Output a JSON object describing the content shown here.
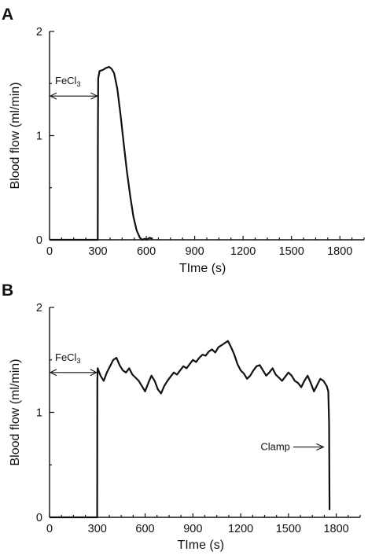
{
  "chart_data": [
    {
      "type": "line",
      "panel": "A",
      "xlabel": "TIme (s)",
      "ylabel": "Blood flow (ml/min)",
      "xlim": [
        0,
        1950
      ],
      "ylim": [
        0,
        2
      ],
      "xticks": [
        0,
        300,
        600,
        900,
        1200,
        1500,
        1800
      ],
      "yticks": [
        0,
        1,
        2
      ],
      "annotations": [
        {
          "label": "FeCl",
          "subscript": "3",
          "kind": "double-arrow",
          "x_from": 0,
          "x_to": 300,
          "y": 1.38
        }
      ],
      "series": [
        {
          "x": [
            0,
            299,
            300,
            302,
            310,
            330,
            350,
            370,
            385,
            400,
            420,
            440,
            460,
            480,
            500,
            520,
            540,
            560,
            575,
            590,
            600,
            620,
            640
          ],
          "y": [
            0,
            0,
            1.0,
            1.55,
            1.62,
            1.63,
            1.65,
            1.66,
            1.64,
            1.6,
            1.45,
            1.2,
            0.92,
            0.65,
            0.42,
            0.22,
            0.09,
            0.02,
            0.0,
            0.01,
            0.0,
            0.02,
            0.01
          ]
        }
      ]
    },
    {
      "type": "line",
      "panel": "B",
      "xlabel": "TIme (s)",
      "ylabel": "Blood flow (ml/min)",
      "xlim": [
        0,
        1950
      ],
      "ylim": [
        0,
        2
      ],
      "xticks": [
        0,
        300,
        600,
        900,
        1200,
        1500,
        1800
      ],
      "yticks": [
        0,
        1,
        2
      ],
      "annotations": [
        {
          "label": "FeCl",
          "subscript": "3",
          "kind": "double-arrow",
          "x_from": 0,
          "x_to": 300,
          "y": 1.38
        },
        {
          "label": "Clamp",
          "kind": "arrow-right",
          "x_from": 1530,
          "x_to": 1720,
          "y": 0.67
        }
      ],
      "series": [
        {
          "x": [
            0,
            299,
            300,
            302,
            320,
            340,
            360,
            380,
            400,
            420,
            440,
            460,
            480,
            500,
            520,
            540,
            560,
            580,
            600,
            620,
            640,
            660,
            680,
            700,
            720,
            740,
            760,
            780,
            800,
            820,
            840,
            860,
            880,
            900,
            920,
            940,
            960,
            980,
            1000,
            1020,
            1040,
            1060,
            1080,
            1100,
            1120,
            1140,
            1160,
            1180,
            1200,
            1220,
            1240,
            1260,
            1280,
            1300,
            1320,
            1340,
            1360,
            1380,
            1400,
            1420,
            1440,
            1460,
            1480,
            1500,
            1520,
            1540,
            1560,
            1580,
            1600,
            1620,
            1640,
            1660,
            1680,
            1700,
            1720,
            1740,
            1750,
            1755,
            1758
          ],
          "y": [
            0,
            0,
            1.3,
            1.42,
            1.35,
            1.3,
            1.38,
            1.44,
            1.5,
            1.52,
            1.45,
            1.4,
            1.38,
            1.42,
            1.36,
            1.33,
            1.3,
            1.25,
            1.2,
            1.28,
            1.35,
            1.3,
            1.22,
            1.18,
            1.25,
            1.3,
            1.34,
            1.38,
            1.36,
            1.4,
            1.44,
            1.42,
            1.46,
            1.5,
            1.48,
            1.52,
            1.55,
            1.54,
            1.58,
            1.6,
            1.57,
            1.62,
            1.64,
            1.66,
            1.68,
            1.62,
            1.55,
            1.46,
            1.4,
            1.37,
            1.32,
            1.35,
            1.4,
            1.44,
            1.45,
            1.4,
            1.35,
            1.38,
            1.42,
            1.36,
            1.33,
            1.3,
            1.34,
            1.38,
            1.35,
            1.3,
            1.28,
            1.24,
            1.3,
            1.35,
            1.28,
            1.2,
            1.26,
            1.32,
            1.3,
            1.25,
            1.2,
            0.9,
            0.07
          ]
        }
      ]
    }
  ]
}
